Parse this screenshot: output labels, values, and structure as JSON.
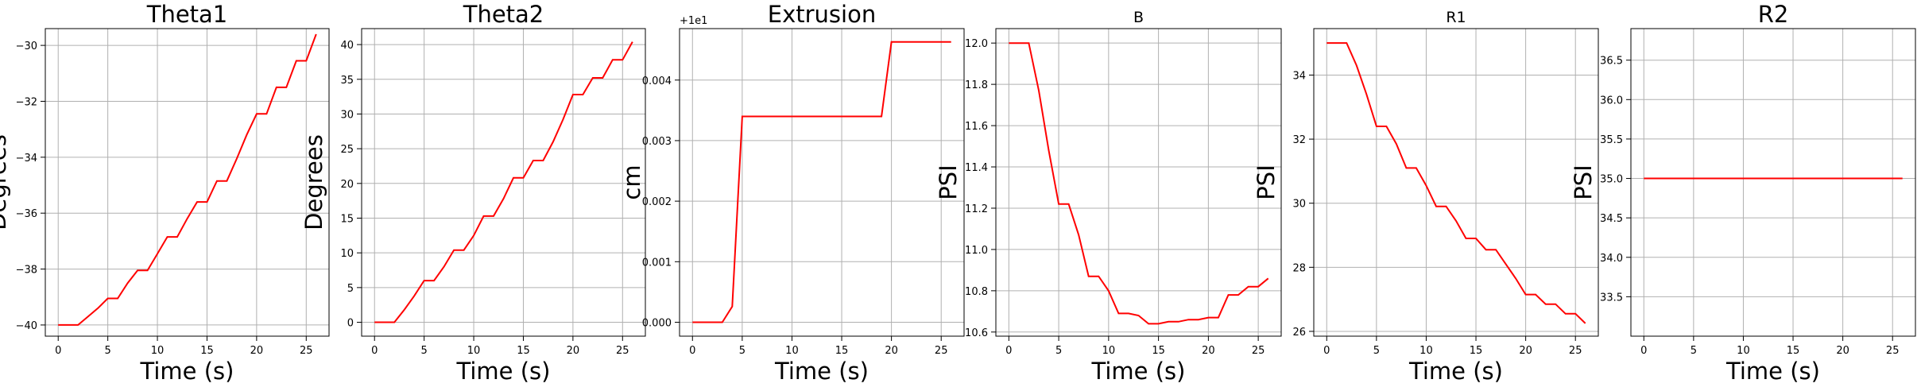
{
  "colors": {
    "series": "#ff0000",
    "grid": "#b0b0b0",
    "axis": "#000000"
  },
  "chart_data": [
    {
      "type": "line",
      "title": "Theta1",
      "xlabel": "Time (s)",
      "ylabel": "Degrees",
      "xlim": [
        -1.3,
        27.3
      ],
      "ylim": [
        -40.4,
        -29.4
      ],
      "xticks": [
        0,
        5,
        10,
        15,
        20,
        25
      ],
      "xtick_labels": [
        "0",
        "5",
        "10",
        "15",
        "20",
        "25"
      ],
      "yticks": [
        -40,
        -38,
        -36,
        -34,
        -32,
        -30
      ],
      "ytick_labels": [
        "−40",
        "−38",
        "−36",
        "−34",
        "−32",
        "−30"
      ],
      "offset_label": "",
      "grid": true,
      "series": [
        {
          "x": [
            0,
            1,
            2,
            3,
            4,
            5,
            6,
            7,
            8,
            9,
            10,
            11,
            12,
            13,
            14,
            15,
            16,
            17,
            18,
            19,
            20,
            21,
            22,
            23,
            24,
            25,
            26
          ],
          "y": [
            -40.0,
            -40.0,
            -40.0,
            -39.7,
            -39.4,
            -39.05,
            -39.05,
            -38.5,
            -38.05,
            -38.05,
            -37.45,
            -36.85,
            -36.85,
            -36.2,
            -35.6,
            -35.6,
            -34.85,
            -34.85,
            -34.05,
            -33.2,
            -32.45,
            -32.45,
            -31.5,
            -31.5,
            -30.55,
            -30.55,
            -29.6
          ]
        }
      ]
    },
    {
      "type": "line",
      "title": "Theta2",
      "xlabel": "Time (s)",
      "ylabel": "Degrees",
      "xlim": [
        -1.3,
        27.3
      ],
      "ylim": [
        -2.0,
        42.3
      ],
      "xticks": [
        0,
        5,
        10,
        15,
        20,
        25
      ],
      "xtick_labels": [
        "0",
        "5",
        "10",
        "15",
        "20",
        "25"
      ],
      "yticks": [
        0,
        5,
        10,
        15,
        20,
        25,
        30,
        35,
        40
      ],
      "ytick_labels": [
        "0",
        "5",
        "10",
        "15",
        "20",
        "25",
        "30",
        "35",
        "40"
      ],
      "offset_label": "",
      "grid": true,
      "series": [
        {
          "x": [
            0,
            1,
            2,
            3,
            4,
            5,
            6,
            7,
            8,
            9,
            10,
            11,
            12,
            13,
            14,
            15,
            16,
            17,
            18,
            19,
            20,
            21,
            22,
            23,
            24,
            25,
            26
          ],
          "y": [
            0,
            0,
            0,
            1.8,
            3.8,
            6.0,
            6.0,
            8.0,
            10.4,
            10.4,
            12.5,
            15.3,
            15.3,
            17.8,
            20.8,
            20.8,
            23.3,
            23.3,
            26.0,
            29.2,
            32.8,
            32.8,
            35.2,
            35.2,
            37.8,
            37.8,
            40.4
          ]
        }
      ]
    },
    {
      "type": "line",
      "title": "Extrusion",
      "xlabel": "Time (s)",
      "ylabel": "cm",
      "xlim": [
        -1.3,
        27.3
      ],
      "ylim": [
        -0.00023,
        0.00485
      ],
      "xticks": [
        0,
        5,
        10,
        15,
        20,
        25
      ],
      "xtick_labels": [
        "0",
        "5",
        "10",
        "15",
        "20",
        "25"
      ],
      "yticks": [
        0,
        0.001,
        0.002,
        0.003,
        0.004
      ],
      "ytick_labels": [
        "0.000",
        "0.001",
        "0.002",
        "0.003",
        "0.004"
      ],
      "offset_label": "+1e1",
      "grid": true,
      "series": [
        {
          "x": [
            0,
            1,
            2,
            3,
            4,
            5,
            6,
            7,
            8,
            9,
            10,
            11,
            12,
            13,
            14,
            15,
            16,
            17,
            18,
            19,
            20,
            21,
            22,
            23,
            24,
            25,
            26
          ],
          "y": [
            0,
            0,
            0,
            0,
            0.00026,
            0.0034,
            0.0034,
            0.0034,
            0.0034,
            0.0034,
            0.0034,
            0.0034,
            0.0034,
            0.0034,
            0.0034,
            0.0034,
            0.0034,
            0.0034,
            0.0034,
            0.0034,
            0.00463,
            0.00463,
            0.00463,
            0.00463,
            0.00463,
            0.00463,
            0.00463
          ]
        }
      ]
    },
    {
      "type": "line",
      "title": "B",
      "xlabel": "Time (s)",
      "ylabel": "PSI",
      "xlim": [
        -1.3,
        27.3
      ],
      "ylim": [
        10.58,
        12.07
      ],
      "xticks": [
        0,
        5,
        10,
        15,
        20,
        25
      ],
      "xtick_labels": [
        "0",
        "5",
        "10",
        "15",
        "20",
        "25"
      ],
      "yticks": [
        10.6,
        10.8,
        11.0,
        11.2,
        11.4,
        11.6,
        11.8,
        12.0
      ],
      "ytick_labels": [
        "10.6",
        "10.8",
        "11.0",
        "11.2",
        "11.4",
        "11.6",
        "11.8",
        "12.0"
      ],
      "offset_label": "",
      "grid": true,
      "series": [
        {
          "x": [
            0,
            1,
            2,
            3,
            4,
            5,
            6,
            7,
            8,
            9,
            10,
            11,
            12,
            13,
            14,
            15,
            16,
            17,
            18,
            19,
            20,
            21,
            22,
            23,
            24,
            25,
            26
          ],
          "y": [
            12.0,
            12.0,
            12.0,
            11.77,
            11.48,
            11.22,
            11.22,
            11.07,
            10.87,
            10.87,
            10.8,
            10.69,
            10.69,
            10.68,
            10.64,
            10.64,
            10.65,
            10.65,
            10.66,
            10.66,
            10.67,
            10.67,
            10.78,
            10.78,
            10.82,
            10.82,
            10.86
          ]
        }
      ]
    },
    {
      "type": "line",
      "title": "R1",
      "xlabel": "Time (s)",
      "ylabel": "PSI",
      "xlim": [
        -1.3,
        27.3
      ],
      "ylim": [
        25.85,
        35.45
      ],
      "xticks": [
        0,
        5,
        10,
        15,
        20,
        25
      ],
      "xtick_labels": [
        "0",
        "5",
        "10",
        "15",
        "20",
        "25"
      ],
      "yticks": [
        26,
        28,
        30,
        32,
        34
      ],
      "ytick_labels": [
        "26",
        "28",
        "30",
        "32",
        "34"
      ],
      "offset_label": "",
      "grid": true,
      "series": [
        {
          "x": [
            0,
            1,
            2,
            3,
            4,
            5,
            6,
            7,
            8,
            9,
            10,
            11,
            12,
            13,
            14,
            15,
            16,
            17,
            18,
            19,
            20,
            21,
            22,
            23,
            24,
            25,
            26
          ],
          "y": [
            35.0,
            35.0,
            35.0,
            34.3,
            33.4,
            32.4,
            32.4,
            31.85,
            31.1,
            31.1,
            30.55,
            29.9,
            29.9,
            29.45,
            28.9,
            28.9,
            28.55,
            28.55,
            28.1,
            27.65,
            27.15,
            27.15,
            26.85,
            26.85,
            26.55,
            26.55,
            26.25
          ]
        }
      ]
    },
    {
      "type": "line",
      "title": "R2",
      "xlabel": "Time (s)",
      "ylabel": "PSI",
      "xlim": [
        -1.3,
        27.3
      ],
      "ylim": [
        33.0,
        36.9
      ],
      "xticks": [
        0,
        5,
        10,
        15,
        20,
        25
      ],
      "xtick_labels": [
        "0",
        "5",
        "10",
        "15",
        "20",
        "25"
      ],
      "yticks": [
        33.5,
        34.0,
        34.5,
        35.0,
        35.5,
        36.0,
        36.5
      ],
      "ytick_labels": [
        "33.5",
        "34.0",
        "34.5",
        "35.0",
        "35.5",
        "36.0",
        "36.5"
      ],
      "offset_label": "",
      "grid": true,
      "series": [
        {
          "x": [
            0,
            26
          ],
          "y": [
            35.0,
            35.0
          ]
        }
      ]
    }
  ]
}
